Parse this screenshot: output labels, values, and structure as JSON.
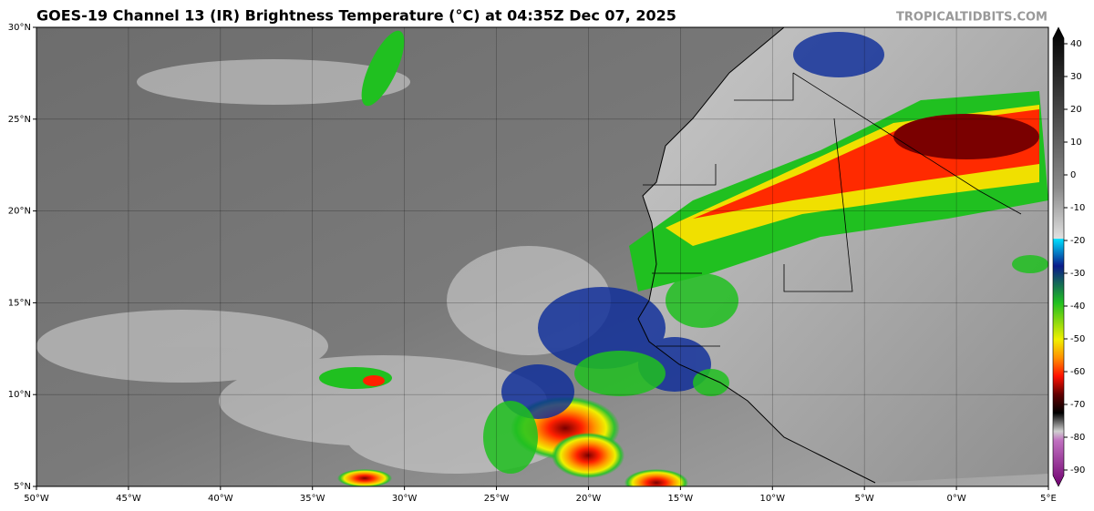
{
  "title": "GOES-19 Channel 13 (IR) Brightness Temperature (°C) at 04:35Z Dec 07, 2025",
  "credit": "TROPICALTIDBITS.COM",
  "lat_labels": [
    "30°N",
    "25°N",
    "20°N",
    "15°N",
    "10°N",
    "5°N"
  ],
  "lon_labels": [
    "50°W",
    "45°W",
    "40°W",
    "35°W",
    "30°W",
    "25°W",
    "20°W",
    "15°W",
    "10°W",
    "5°W",
    "0°W",
    "5°E"
  ],
  "colorbar": {
    "ticks": [
      40,
      30,
      20,
      10,
      0,
      -10,
      -20,
      -30,
      -40,
      -50,
      -60,
      -70,
      -80,
      -90
    ]
  }
}
